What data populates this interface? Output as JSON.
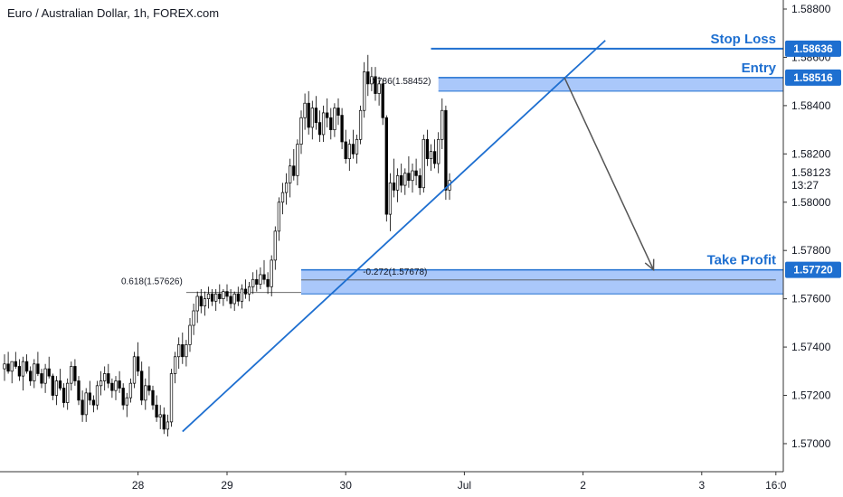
{
  "chart_data": {
    "type": "candlestick",
    "title": "Euro / Australian Dollar, 1h, FOREX.com",
    "symbol": "EURAUD",
    "timeframe": "1h",
    "source": "FOREX.com",
    "ylim": [
      1.5691,
      1.5883
    ],
    "y_ticks": [
      "1.58800",
      "1.58600",
      "1.58400",
      "1.58200",
      "1.58000",
      "1.57800",
      "1.57600",
      "1.57400",
      "1.57200",
      "1.57000"
    ],
    "x_ticks": [
      {
        "label": "28",
        "bar": 36
      },
      {
        "label": "29",
        "bar": 60
      },
      {
        "label": "30",
        "bar": 92
      },
      {
        "label": "Jul",
        "bar": 124
      },
      {
        "label": "2",
        "bar": 156
      },
      {
        "label": "3",
        "bar": 188
      },
      {
        "label": "16:0",
        "bar": 208
      }
    ],
    "current_price": {
      "value": "1.58123",
      "countdown": "13:27"
    },
    "levels": [
      {
        "name": "Stop Loss",
        "value": 1.58636,
        "tag": "1.58636"
      },
      {
        "name": "Entry",
        "value": 1.58516,
        "tag": "1.58516"
      },
      {
        "name": "Take Profit",
        "value": 1.5772,
        "tag": "1.57720"
      }
    ],
    "zones": [
      {
        "from": 1.5846,
        "to": 1.58516,
        "start_bar": 117
      },
      {
        "from": 1.5762,
        "to": 1.5772,
        "start_bar": 80
      }
    ],
    "fib_labels": [
      {
        "text": "0.786(1.58452)",
        "bar": 115,
        "value": 1.5849
      },
      {
        "text": "0.618(1.57626)",
        "bar": 48,
        "value": 1.5766
      },
      {
        "text": "-0.272(1.57678)",
        "bar": 114,
        "value": 1.577
      }
    ],
    "fib_lines": [
      {
        "value": 1.57626,
        "from_bar": 49,
        "to_bar": 80
      },
      {
        "value": 1.57678,
        "from_bar": 80,
        "to_bar": 208
      }
    ],
    "stop_line": {
      "from_bar": 115,
      "to_bar": 208,
      "value": 1.58636
    },
    "trendline": {
      "from_bar": 48,
      "from_value": 1.5705,
      "to_bar": 162,
      "to_value": 1.5867
    },
    "arrow": {
      "from_bar": 151,
      "from_value": 1.58516,
      "to_bar": 175,
      "to_value": 1.5772
    },
    "candles": [
      [
        1.5731,
        1.5737,
        1.5726,
        1.5733
      ],
      [
        1.5733,
        1.5738,
        1.5729,
        1.573
      ],
      [
        1.573,
        1.5734,
        1.5725,
        1.5734
      ],
      [
        1.5734,
        1.5738,
        1.5731,
        1.5732
      ],
      [
        1.5732,
        1.5735,
        1.5726,
        1.5728
      ],
      [
        1.5728,
        1.5736,
        1.5722,
        1.5734
      ],
      [
        1.5734,
        1.5737,
        1.5729,
        1.573
      ],
      [
        1.573,
        1.5732,
        1.5724,
        1.5726
      ],
      [
        1.5726,
        1.5735,
        1.5723,
        1.5733
      ],
      [
        1.5733,
        1.5738,
        1.5728,
        1.5729
      ],
      [
        1.5729,
        1.5731,
        1.5723,
        1.5725
      ],
      [
        1.5725,
        1.5733,
        1.5721,
        1.5731
      ],
      [
        1.5731,
        1.5736,
        1.5727,
        1.5728
      ],
      [
        1.5728,
        1.5729,
        1.5718,
        1.572
      ],
      [
        1.572,
        1.5728,
        1.5716,
        1.5726
      ],
      [
        1.5726,
        1.5731,
        1.5722,
        1.5723
      ],
      [
        1.5723,
        1.5725,
        1.5715,
        1.5717
      ],
      [
        1.5717,
        1.5727,
        1.5714,
        1.5725
      ],
      [
        1.5725,
        1.5734,
        1.5722,
        1.5732
      ],
      [
        1.5732,
        1.5735,
        1.5724,
        1.5726
      ],
      [
        1.5726,
        1.5728,
        1.5716,
        1.5718
      ],
      [
        1.5718,
        1.5722,
        1.5709,
        1.5712
      ],
      [
        1.5712,
        1.5723,
        1.5709,
        1.5721
      ],
      [
        1.5721,
        1.5726,
        1.5716,
        1.5718
      ],
      [
        1.5718,
        1.572,
        1.5713,
        1.5716
      ],
      [
        1.5716,
        1.5726,
        1.5714,
        1.5724
      ],
      [
        1.5724,
        1.573,
        1.572,
        1.5726
      ],
      [
        1.5726,
        1.5732,
        1.5722,
        1.5729
      ],
      [
        1.5729,
        1.5733,
        1.5723,
        1.5725
      ],
      [
        1.5725,
        1.5727,
        1.5719,
        1.5722
      ],
      [
        1.5722,
        1.5728,
        1.5718,
        1.5726
      ],
      [
        1.5726,
        1.573,
        1.5721,
        1.5723
      ],
      [
        1.5723,
        1.5725,
        1.5714,
        1.5716
      ],
      [
        1.5716,
        1.5721,
        1.5711,
        1.5719
      ],
      [
        1.5719,
        1.5727,
        1.5717,
        1.5725
      ],
      [
        1.5725,
        1.5738,
        1.5723,
        1.5736
      ],
      [
        1.5736,
        1.5742,
        1.5728,
        1.573
      ],
      [
        1.573,
        1.5734,
        1.5716,
        1.5718
      ],
      [
        1.5718,
        1.5727,
        1.5714,
        1.5724
      ],
      [
        1.5724,
        1.5732,
        1.572,
        1.5722
      ],
      [
        1.5722,
        1.5724,
        1.5714,
        1.5716
      ],
      [
        1.5716,
        1.572,
        1.5709,
        1.5711
      ],
      [
        1.5711,
        1.5716,
        1.5706,
        1.5712
      ],
      [
        1.5712,
        1.5715,
        1.5704,
        1.5706
      ],
      [
        1.5706,
        1.5712,
        1.5703,
        1.5709
      ],
      [
        1.5709,
        1.5731,
        1.5707,
        1.5729
      ],
      [
        1.5729,
        1.5738,
        1.5725,
        1.5736
      ],
      [
        1.5736,
        1.5744,
        1.5731,
        1.5741
      ],
      [
        1.5741,
        1.5746,
        1.5733,
        1.5736
      ],
      [
        1.5736,
        1.5743,
        1.5732,
        1.5741
      ],
      [
        1.5741,
        1.5752,
        1.5738,
        1.5749
      ],
      [
        1.5749,
        1.5758,
        1.5745,
        1.5755
      ],
      [
        1.5755,
        1.5763,
        1.575,
        1.5761
      ],
      [
        1.5761,
        1.5764,
        1.5754,
        1.5757
      ],
      [
        1.5757,
        1.5763,
        1.5753,
        1.576
      ],
      [
        1.576,
        1.5765,
        1.5756,
        1.5762
      ],
      [
        1.5762,
        1.5764,
        1.5757,
        1.5759
      ],
      [
        1.5759,
        1.5764,
        1.5755,
        1.5762
      ],
      [
        1.5762,
        1.5766,
        1.5758,
        1.576
      ],
      [
        1.576,
        1.5764,
        1.5757,
        1.5763
      ],
      [
        1.5763,
        1.5766,
        1.5759,
        1.5761
      ],
      [
        1.5761,
        1.5764,
        1.5756,
        1.5758
      ],
      [
        1.5758,
        1.5763,
        1.5755,
        1.5762
      ],
      [
        1.5762,
        1.5765,
        1.5757,
        1.5759
      ],
      [
        1.5759,
        1.5766,
        1.5756,
        1.5764
      ],
      [
        1.5764,
        1.5768,
        1.576,
        1.5762
      ],
      [
        1.5762,
        1.5767,
        1.5759,
        1.5765
      ],
      [
        1.5765,
        1.5771,
        1.5762,
        1.5768
      ],
      [
        1.5768,
        1.5772,
        1.5763,
        1.5766
      ],
      [
        1.5766,
        1.5773,
        1.5764,
        1.577
      ],
      [
        1.577,
        1.5776,
        1.5766,
        1.5768
      ],
      [
        1.5768,
        1.5771,
        1.5762,
        1.5765
      ],
      [
        1.5765,
        1.5778,
        1.5761,
        1.5776
      ],
      [
        1.5776,
        1.579,
        1.5772,
        1.5788
      ],
      [
        1.5788,
        1.5802,
        1.5784,
        1.58
      ],
      [
        1.58,
        1.5808,
        1.5795,
        1.5804
      ],
      [
        1.5804,
        1.5812,
        1.5799,
        1.5808
      ],
      [
        1.5808,
        1.5818,
        1.5802,
        1.5815
      ],
      [
        1.5815,
        1.5822,
        1.5809,
        1.5811
      ],
      [
        1.5811,
        1.5826,
        1.5807,
        1.5824
      ],
      [
        1.5824,
        1.5838,
        1.582,
        1.5835
      ],
      [
        1.5835,
        1.5845,
        1.583,
        1.5841
      ],
      [
        1.5841,
        1.5846,
        1.5828,
        1.5831
      ],
      [
        1.5831,
        1.5842,
        1.5826,
        1.5839
      ],
      [
        1.5839,
        1.5844,
        1.583,
        1.5833
      ],
      [
        1.5833,
        1.5838,
        1.5825,
        1.5828
      ],
      [
        1.5828,
        1.584,
        1.5825,
        1.5837
      ],
      [
        1.5837,
        1.5843,
        1.5831,
        1.5835
      ],
      [
        1.5835,
        1.5839,
        1.5826,
        1.583
      ],
      [
        1.583,
        1.5841,
        1.5827,
        1.5839
      ],
      [
        1.5839,
        1.5843,
        1.5832,
        1.5836
      ],
      [
        1.5836,
        1.5839,
        1.5822,
        1.5825
      ],
      [
        1.5825,
        1.583,
        1.5816,
        1.5818
      ],
      [
        1.5818,
        1.5826,
        1.5813,
        1.5824
      ],
      [
        1.5824,
        1.583,
        1.5818,
        1.582
      ],
      [
        1.582,
        1.5828,
        1.5816,
        1.5826
      ],
      [
        1.5826,
        1.584,
        1.5824,
        1.5838
      ],
      [
        1.5838,
        1.5858,
        1.5835,
        1.5854
      ],
      [
        1.5854,
        1.5861,
        1.5844,
        1.5849
      ],
      [
        1.5849,
        1.5856,
        1.5846,
        1.5852
      ],
      [
        1.5852,
        1.5856,
        1.5842,
        1.5845
      ],
      [
        1.5845,
        1.5852,
        1.584,
        1.5849
      ],
      [
        1.5849,
        1.5851,
        1.5832,
        1.5835
      ],
      [
        1.5835,
        1.5836,
        1.5792,
        1.5795
      ],
      [
        1.5795,
        1.5812,
        1.5788,
        1.5808
      ],
      [
        1.5808,
        1.5818,
        1.5802,
        1.5805
      ],
      [
        1.5805,
        1.5814,
        1.58,
        1.5811
      ],
      [
        1.5811,
        1.5816,
        1.5804,
        1.5807
      ],
      [
        1.5807,
        1.5814,
        1.5803,
        1.5812
      ],
      [
        1.5812,
        1.5819,
        1.5806,
        1.5809
      ],
      [
        1.5809,
        1.5816,
        1.5804,
        1.5813
      ],
      [
        1.5813,
        1.5818,
        1.5807,
        1.5811
      ],
      [
        1.5811,
        1.5814,
        1.5803,
        1.5806
      ],
      [
        1.5806,
        1.5828,
        1.5804,
        1.5826
      ],
      [
        1.5826,
        1.583,
        1.5815,
        1.5818
      ],
      [
        1.5818,
        1.5824,
        1.5813,
        1.5821
      ],
      [
        1.5821,
        1.5826,
        1.5814,
        1.5816
      ],
      [
        1.5816,
        1.5829,
        1.5812,
        1.5826
      ],
      [
        1.5826,
        1.5843,
        1.5822,
        1.5838
      ],
      [
        1.5838,
        1.584,
        1.5801,
        1.5805
      ],
      [
        1.5805,
        1.5812,
        1.5801,
        1.5809
      ]
    ]
  }
}
